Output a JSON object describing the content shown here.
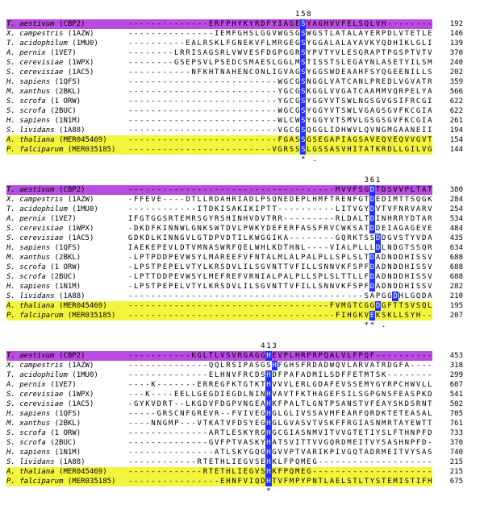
{
  "blocks": [
    {
      "position_label": "158",
      "position_col": 30,
      "marker_cols": [
        30,
        32
      ],
      "rows": [
        {
          "hl": "purple",
          "species": "T. aestivum",
          "code": "(CBP2)",
          "pre": "-------ERFPHYKYRDFYIAGE",
          "blue": "S",
          "post": "YAGHVVFELSQLVH---------------",
          "num": "192"
        },
        {
          "hl": null,
          "species": "X. campestris",
          "code": "(1AZW)",
          "pre": "-----------IEMFGHSLGGVWGSG",
          "blue": "S",
          "post": "WGSTLATALAYERPDLVTETLEATHMSE",
          "num": "146"
        },
        {
          "hl": null,
          "species": "T. acidophilum",
          "code": "(1MU0)",
          "pre": "---EALRSKLFGNEKVFLMRGEG",
          "blue": "S",
          "post": "YGGALALAYAVKYQDHIKLGLIVSGGGLSSVPLVTK",
          "num": "139"
        },
        {
          "hl": null,
          "species": "A. pernix",
          "code": "(1VE7)",
          "pre": "-LRRISAGSRLVWVESFDGPGGR",
          "blue": "S",
          "post": "YPVTYVLESGRAPTPGSPTVTVLVHGGPFAEDSDSW",
          "num": "370"
        },
        {
          "hl": null,
          "species": "S. cerevisiae",
          "code": "(1WPX)",
          "pre": "-GSEPSVLPSEDCSMAESLGGLM",
          "blue": "S",
          "post": "TISSTSLEGAYNLASETYILSMVSLEDASDVGKYRL",
          "num": "240"
        },
        {
          "hl": null,
          "species": "S. cerevisiae",
          "code": "(1AC5)",
          "pre": "----NFKHTNAHENCONLIGVAG",
          "blue": "S",
          "post": "YGGSWDEAAHFSYQGEENILLSYTIRESSQQMKTAG-",
          "num": "202"
        },
        {
          "hl": null,
          "species": "H. sapiens",
          "code": "(1QFS)",
          "pre": "-----------------------WGCG",
          "blue": "S",
          "post": "NGGLVATCANLPREDLVGVATRAWSDLAPMLKFHK",
          "num": "359"
        },
        {
          "hl": null,
          "species": "M. xanthus",
          "code": "(2BKL)",
          "pre": "-----------------------YGCG",
          "blue": "S",
          "post": "KGGLVVGATCAAMMVQRPELYAGAVVVCVAPLLDVMRYHL",
          "num": "566"
        },
        {
          "hl": null,
          "species": "S. scrofa",
          "code": "(1 ORW)",
          "pre": "-----------------------YGCG",
          "blue": "S",
          "post": "YGGYVTSWLNGSGVGSIFRCGIAVAPSMVYYPWIDS",
          "num": "622"
        },
        {
          "hl": null,
          "species": "S. scrofa",
          "code": "(2BUC)",
          "pre": "-----------------------WGCG",
          "blue": "S",
          "post": "YGGYVTSWLVGAGSGVFKCGIAVAPVSKWEYDS",
          "num": "622"
        },
        {
          "hl": null,
          "species": "H. sapiens",
          "code": "(1N1M)",
          "pre": "-----------------------WLCW",
          "blue": "S",
          "post": "YGGYVTSMVLGSGSGVFKCGIAVAPVSRWEYDS",
          "num": "261"
        },
        {
          "hl": null,
          "species": "S. lividans",
          "code": "(1A88)",
          "pre": "-----------------------VGCG",
          "blue": "S",
          "post": "QGGLIDHWVLQVNGMGAANEIIAAPSFED",
          "num": "194"
        },
        {
          "hl": "yellow",
          "species": "A. thaliana",
          "code": "(MER045469)",
          "pre": "--------------------FGAS",
          "blue": "S",
          "post": "GSEGAPIAGSAVEQVEQVVGVTVSLGYPFPGLMAS--",
          "num": "154"
        },
        {
          "hl": "yellow",
          "species": "P. falciparum",
          "code": "(MER035185)",
          "pre": "--------------------VGRSS",
          "blue": "S",
          "post": "LGSSASVHITATKRDLLGILVGL----------",
          "num": "144"
        }
      ]
    },
    {
      "position_label": "361",
      "position_col": 42,
      "marker_cols": [
        41,
        42,
        44
      ],
      "rows": [
        {
          "hl": "purple",
          "species": "T. aestivum",
          "code": "(CBP2)",
          "pre": "-----------------------------------MVVFSG",
          "blue": "D",
          "post": "TDSVVPLTATRYSIGALG---",
          "num": "380"
        },
        {
          "hl": null,
          "species": "X. campestris",
          "code": "(1AZW)",
          "pre": "FFEVE----DTLLRDAHRIADLPSQNEDEPLHMFTRENFGT",
          "blue": "D",
          "post": "EDIMTTSQGKLKMSVHA---",
          "num": "284"
        },
        {
          "hl": null,
          "species": "T. acidophilum",
          "code": "(1MU0)",
          "pre": "------------ITDKISAKIKIPTT----------LITVGY",
          "blue": "D",
          "post": "VTVFNRVARVIHEKIAGS-",
          "num": "254"
        },
        {
          "hl": null,
          "species": "A. pernix",
          "code": "(1VE7)",
          "pre": "IFGTGGSRTEMRSGYRSHINHVDVTRR---------RLDALT",
          "blue": "D",
          "post": "INHRRYDTARLYLRLGAMSELT-",
          "num": "534"
        },
        {
          "hl": null,
          "species": "S. cerevisiae",
          "code": "(1WPX)",
          "pre": "-DKDFKINNWLGNKSWTDVLPWKYDEFERFASSFRVCWKSAT",
          "blue": "D",
          "post": "DEIAGAGEVEKSY-------",
          "num": "484"
        },
        {
          "hl": null,
          "species": "S. cerevisiae",
          "code": "(1AC5)",
          "pre": "GDKDLKINNGVLGTDPVDTILKWGGIKA--------GQRKTSS",
          "blue": "D",
          "post": "DGVSTYVDATFHKSKSTSDAIT",
          "num": "435"
        },
        {
          "hl": null,
          "species": "H. sapiens",
          "code": "(1QFS)",
          "pre": "IAEKEPEVLDTVMNASWRFQELWHLKDTHNL----VIALPLLL",
          "blue": "D",
          "post": "LNDGTSSQRNIAEVVISGLKEG-",
          "num": "634"
        },
        {
          "hl": null,
          "species": "M. xanthus",
          "code": "(2BKL)",
          "pre": "LPTPDDPEVWSYLMAREEFVFNTALMLALPALPLLSPLSLT",
          "blue": "D",
          "post": "ADNDDHISSVKRNRILDSKLEG-",
          "num": "688"
        },
        {
          "hl": null,
          "species": "S. scrofa",
          "code": "(1 ORW)",
          "pre": "LPSTPEPELVTYLKRSDVLILSGVNTTVFILLSNNVKFSPF",
          "blue": "D",
          "post": "ADNDDHISSVKRNRILDSKLEG-",
          "num": "688"
        },
        {
          "hl": null,
          "species": "S. scrofa",
          "code": "(2BUC)",
          "pre": "LPTTDDPEVWSYLMEFREFVRNIALPALPLLSPLSLTTLLF",
          "blue": "D",
          "post": "ADNDDHISSVKRNRILDSKLEG-",
          "num": "688"
        },
        {
          "hl": null,
          "species": "H. sapiens",
          "code": "(1N1M)",
          "pre": "LPSTPEPELVTYLKRSDVLILSGVNTTVFILLSNNVKFSPF",
          "blue": "D",
          "post": "ADNDDHISSVKRNRILDSKLEG-",
          "num": "282"
        },
        {
          "hl": null,
          "species": "S. lividans",
          "code": "(1A88)",
          "pre": "-----------------------------------------SAPGG",
          "blue": "D",
          "post": "HLGQDAVSKSLLMKFTA---",
          "num": "210"
        },
        {
          "hl": "yellow",
          "species": "A. thaliana",
          "code": "(MER045469)",
          "pre": "-----------------------------------FVMGTCGG",
          "blue": "D",
          "post": "GFTTSVSQLIEKKLKSACRVRGA",
          "num": "195"
        },
        {
          "hl": "yellow",
          "species": "P. falciparum",
          "code": "(MER035185)",
          "pre": "-----------------------------------FIHGKV",
          "blue": "E",
          "post": "KSKLLSYH-----------",
          "num": "207"
        }
      ]
    },
    {
      "position_label": "413",
      "position_col": 24,
      "marker_cols": [
        24
      ],
      "rows": [
        {
          "hl": "purple",
          "species": "T. aestivum",
          "code": "(CBP2)",
          "pre": "----------KGLTLVSVRGAGG",
          "blue": "H",
          "post": "EVPLHRPRPQALVLFPQF---------------",
          "num": "453"
        },
        {
          "hl": null,
          "species": "X. campestris",
          "code": "(1AZW)",
          "pre": "--------------QQLRSIPASGS",
          "blue": "H",
          "post": "FGHSFRDADWQVLARVATRDGFA-------------",
          "num": "318"
        },
        {
          "hl": null,
          "species": "T. acidophilum",
          "code": "(1MU0)",
          "pre": "----------ELHNVFRCDS",
          "blue": "H",
          "post": "DFPAFADMILSDFFETMTSK-----------",
          "num": "299"
        },
        {
          "hl": null,
          "species": "A. pernix",
          "code": "(1VE7)",
          "pre": "K-------ERREGFKTGTKT",
          "blue": "H",
          "post": "VVVLERLGDAFEVSSEMYGYRPCHWVLLKDGLIPLP",
          "num": "607"
        },
        {
          "hl": null,
          "species": "S. cerevisiae",
          "code": "(1WPX)",
          "pre": "K----EELLGEGDIEGDLNIN",
          "blue": "H",
          "post": "VAVTFKTHAGEFSILSGPGNSFEASPKDIKFGDKE-",
          "num": "541"
        },
        {
          "hl": null,
          "species": "S. cerevisiae",
          "code": "(1AC5)",
          "pre": "GYKVDRT--LKGDVFDGPVNGEA",
          "blue": "H",
          "post": "KFPALTLGNTPSANSTVFEAYSKDSRNTLFNGSEDI",
          "num": "502"
        },
        {
          "hl": null,
          "species": "H. sapiens",
          "code": "(1QFS)",
          "pre": "GRSCNFGREVR--FVIVEG",
          "blue": "H",
          "post": "GLGLIVSSAVMFEARFQRDKTETEASALFGVTRGKA",
          "num": "705"
        },
        {
          "hl": null,
          "species": "M. xanthus",
          "code": "(2BKL)",
          "pre": "NNGMP---VTKATVFDSYEG",
          "blue": "H",
          "post": "GLGVASVTVSKFFRGIASNMRTAYEWTTRYFGVYS-",
          "num": "761"
        },
        {
          "hl": null,
          "species": "S. scrofa",
          "code": "(1 ORW)",
          "pre": "----------ARTLESKYRG",
          "blue": "H",
          "post": "GCGIASNMVITVVGTETIYSLFTHNPFD-----",
          "num": "733"
        },
        {
          "hl": null,
          "species": "S. scrofa",
          "code": "(2BUC)",
          "pre": "----------GVFPTVASKY",
          "blue": "H",
          "post": "ATSVITTVVGQRDMEITVYSASHNPFD------",
          "num": "370"
        },
        {
          "hl": null,
          "species": "H. sapiens",
          "code": "(1N1M)",
          "pre": "----------ATLSKYGQG",
          "blue": "H",
          "post": "GVVPTVARIKPIVGQTADRMEITVYSASHNPFD---",
          "num": "740"
        },
        {
          "hl": null,
          "species": "S. lividans",
          "code": "(1A88)",
          "pre": "------RTETHLIEGVSE",
          "blue": "H",
          "post": "KLFPQMEG---------------------------",
          "num": "215"
        },
        {
          "hl": "yellow",
          "species": "A. thaliana",
          "code": "(MER045469)",
          "pre": "----------RTETHLIEGVS",
          "blue": "H",
          "post": "KFPQMEG---------------------------",
          "num": "215"
        },
        {
          "hl": "yellow",
          "species": "P. falciparum",
          "code": "(MER035185)",
          "pre": "-----------EHNFVIQD",
          "blue": "H",
          "post": "TVFMPYPNTLAELSTLTYSTEMISTIFHNPFDM-",
          "num": "675"
        }
      ]
    }
  ]
}
